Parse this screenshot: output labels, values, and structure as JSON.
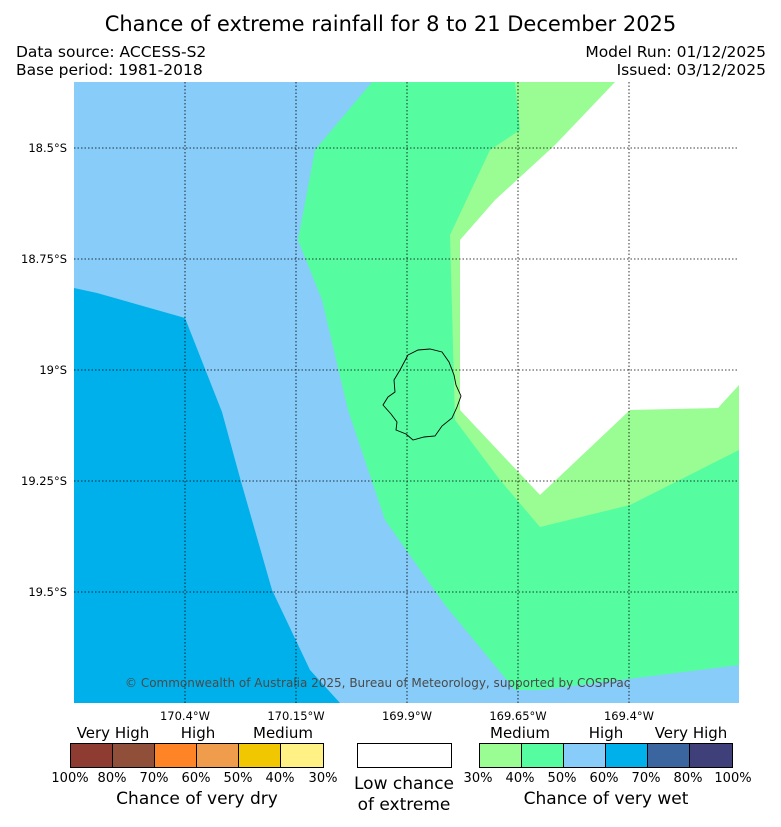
{
  "title": "Chance of extreme rainfall for 8 to 21 December 2025",
  "data_source": "Data source: ACCESS-S2",
  "base_period": "Base period: 1981-2018",
  "model_run": "Model Run: 01/12/2025",
  "issued": "Issued: 03/12/2025",
  "copyright": "© Commonwealth of Australia 2025, Bureau of Meteorology, supported by COSPPac",
  "map": {
    "lat_labels": [
      "18.5°S",
      "18.75°S",
      "19°S",
      "19.25°S",
      "19.5°S"
    ],
    "lon_labels": [
      "170.4°W",
      "170.15°W",
      "169.9°W",
      "169.65°W",
      "169.4°W"
    ],
    "island_outline": "black",
    "region_colors": {
      "wet_60_70": "#00b0ea",
      "wet_50_60": "#88ccfa",
      "wet_40_50": "#55fda0",
      "wet_30_40": "#99fd93",
      "low_chance": "#ffffff"
    }
  },
  "legend": {
    "dry": {
      "categories": [
        "Very High",
        "High",
        "Medium"
      ],
      "colors": [
        "#8e3b32",
        "#8f4f38",
        "#ff8426",
        "#ef9c4c",
        "#f0c700",
        "#fff184"
      ],
      "ticks": [
        "100%",
        "80%",
        "70%",
        "60%",
        "50%",
        "40%",
        "30%"
      ],
      "caption": "Chance of very dry"
    },
    "neutral": {
      "caption_line1": "Low chance",
      "caption_line2": "of extreme",
      "color": "#ffffff"
    },
    "wet": {
      "categories": [
        "Medium",
        "High",
        "Very High"
      ],
      "colors": [
        "#99fd93",
        "#55fda0",
        "#88ccfa",
        "#00b0ea",
        "#3a659e",
        "#3f3f7a"
      ],
      "ticks": [
        "30%",
        "40%",
        "50%",
        "60%",
        "70%",
        "80%",
        "100%"
      ],
      "caption": "Chance of very wet"
    }
  }
}
